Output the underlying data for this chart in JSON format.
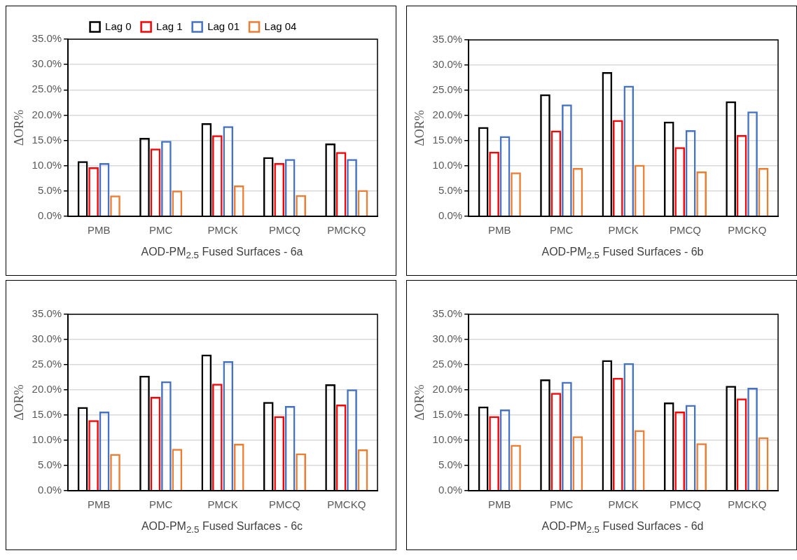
{
  "chart_data": [
    {
      "type": "bar",
      "xlabel": "AOD-PM$_{2.5}$ Fused Surfaces - 6a",
      "ylabel": "ΔOR%",
      "categories": [
        "PMB",
        "PMC",
        "PMCK",
        "PMCQ",
        "PMCKQ"
      ],
      "legend": "top",
      "grid": "y",
      "ylim": [
        0,
        35
      ],
      "yticks": [
        {
          "value": 0,
          "label": "0.0%"
        },
        {
          "value": 5,
          "label": "5.0%"
        },
        {
          "value": 10,
          "label": "10.0%"
        },
        {
          "value": 15,
          "label": "15.0%"
        },
        {
          "value": 20,
          "label": "20.0%"
        },
        {
          "value": 25,
          "label": "25.0%"
        },
        {
          "value": 30,
          "label": "30.0%"
        },
        {
          "value": 35,
          "label": "35.0%"
        }
      ],
      "series": [
        {
          "name": "Lag 0",
          "color": "#000000",
          "values": [
            10.9,
            15.5,
            18.4,
            11.7,
            14.4
          ]
        },
        {
          "name": "Lag 1",
          "color": "#ff0000",
          "values": [
            9.7,
            13.4,
            16.0,
            10.5,
            12.7
          ]
        },
        {
          "name": "Lag 01",
          "color": "#4472c4",
          "values": [
            10.5,
            14.9,
            17.8,
            11.3,
            11.3
          ]
        },
        {
          "name": "Lag 04",
          "color": "#ed7d31",
          "values": [
            4.1,
            5.1,
            6.1,
            4.2,
            5.2
          ]
        }
      ]
    },
    {
      "type": "bar",
      "xlabel": "AOD-PM$_{2.5}$ Fused Surfaces - 6b",
      "ylabel": "ΔOR%",
      "categories": [
        "PMB",
        "PMC",
        "PMCK",
        "PMCQ",
        "PMCKQ"
      ],
      "grid": "y",
      "ylim": [
        0,
        35
      ],
      "yticks": [
        {
          "value": 0,
          "label": "0.0%"
        },
        {
          "value": 5,
          "label": "5.0%"
        },
        {
          "value": 10,
          "label": "10.0%"
        },
        {
          "value": 15,
          "label": "15.0%"
        },
        {
          "value": 20,
          "label": "20.0%"
        },
        {
          "value": 25,
          "label": "25.0%"
        },
        {
          "value": 30,
          "label": "30.0%"
        },
        {
          "value": 35,
          "label": "35.0%"
        }
      ],
      "series": [
        {
          "color": "#000000",
          "values": [
            17.7,
            24.2,
            28.6,
            18.8,
            22.8
          ]
        },
        {
          "color": "#ff0000",
          "values": [
            12.8,
            17.0,
            19.1,
            13.7,
            16.1
          ]
        },
        {
          "color": "#4472c4",
          "values": [
            15.9,
            22.2,
            25.9,
            17.1,
            20.8
          ]
        },
        {
          "color": "#ed7d31",
          "values": [
            8.7,
            9.6,
            10.2,
            8.9,
            9.6
          ]
        }
      ]
    },
    {
      "type": "bar",
      "xlabel": "AOD-PM$_{2.5}$ Fused Surfaces - 6c",
      "ylabel": "ΔOR%",
      "categories": [
        "PMB",
        "PMC",
        "PMCK",
        "PMCQ",
        "PMCKQ"
      ],
      "grid": "y",
      "ylim": [
        0,
        35
      ],
      "yticks": [
        {
          "value": 0,
          "label": "0.0%"
        },
        {
          "value": 5,
          "label": "5.0%"
        },
        {
          "value": 10,
          "label": "10.0%"
        },
        {
          "value": 15,
          "label": "15.0%"
        },
        {
          "value": 20,
          "label": "20.0%"
        },
        {
          "value": 25,
          "label": "25.0%"
        },
        {
          "value": 30,
          "label": "30.0%"
        },
        {
          "value": 35,
          "label": "35.0%"
        }
      ],
      "series": [
        {
          "color": "#000000",
          "values": [
            16.6,
            22.8,
            27.0,
            17.6,
            21.1
          ]
        },
        {
          "color": "#ff0000",
          "values": [
            14.0,
            18.6,
            21.2,
            14.8,
            17.1
          ]
        },
        {
          "color": "#4472c4",
          "values": [
            15.7,
            21.7,
            25.7,
            16.8,
            20.1
          ]
        },
        {
          "color": "#ed7d31",
          "values": [
            7.3,
            8.3,
            9.3,
            7.4,
            8.2
          ]
        }
      ]
    },
    {
      "type": "bar",
      "xlabel": "AOD-PM$_{2.5}$ Fused Surfaces - 6d",
      "ylabel": "ΔOR%",
      "categories": [
        "PMB",
        "PMC",
        "PMCK",
        "PMCQ",
        "PMCKQ"
      ],
      "grid": "y",
      "ylim": [
        0,
        35
      ],
      "yticks": [
        {
          "value": 0,
          "label": "0.0%"
        },
        {
          "value": 5,
          "label": "5.0%"
        },
        {
          "value": 10,
          "label": "10.0%"
        },
        {
          "value": 15,
          "label": "15.0%"
        },
        {
          "value": 20,
          "label": "20.0%"
        },
        {
          "value": 25,
          "label": "25.0%"
        },
        {
          "value": 30,
          "label": "30.0%"
        },
        {
          "value": 35,
          "label": "35.0%"
        }
      ],
      "series": [
        {
          "color": "#000000",
          "values": [
            16.7,
            22.1,
            25.9,
            17.5,
            20.8
          ]
        },
        {
          "color": "#ff0000",
          "values": [
            14.8,
            19.4,
            22.4,
            15.7,
            18.3
          ]
        },
        {
          "color": "#4472c4",
          "values": [
            16.1,
            21.6,
            25.3,
            17.0,
            20.4
          ]
        },
        {
          "color": "#ed7d31",
          "values": [
            9.1,
            10.8,
            12.0,
            9.4,
            10.6
          ]
        }
      ]
    }
  ]
}
